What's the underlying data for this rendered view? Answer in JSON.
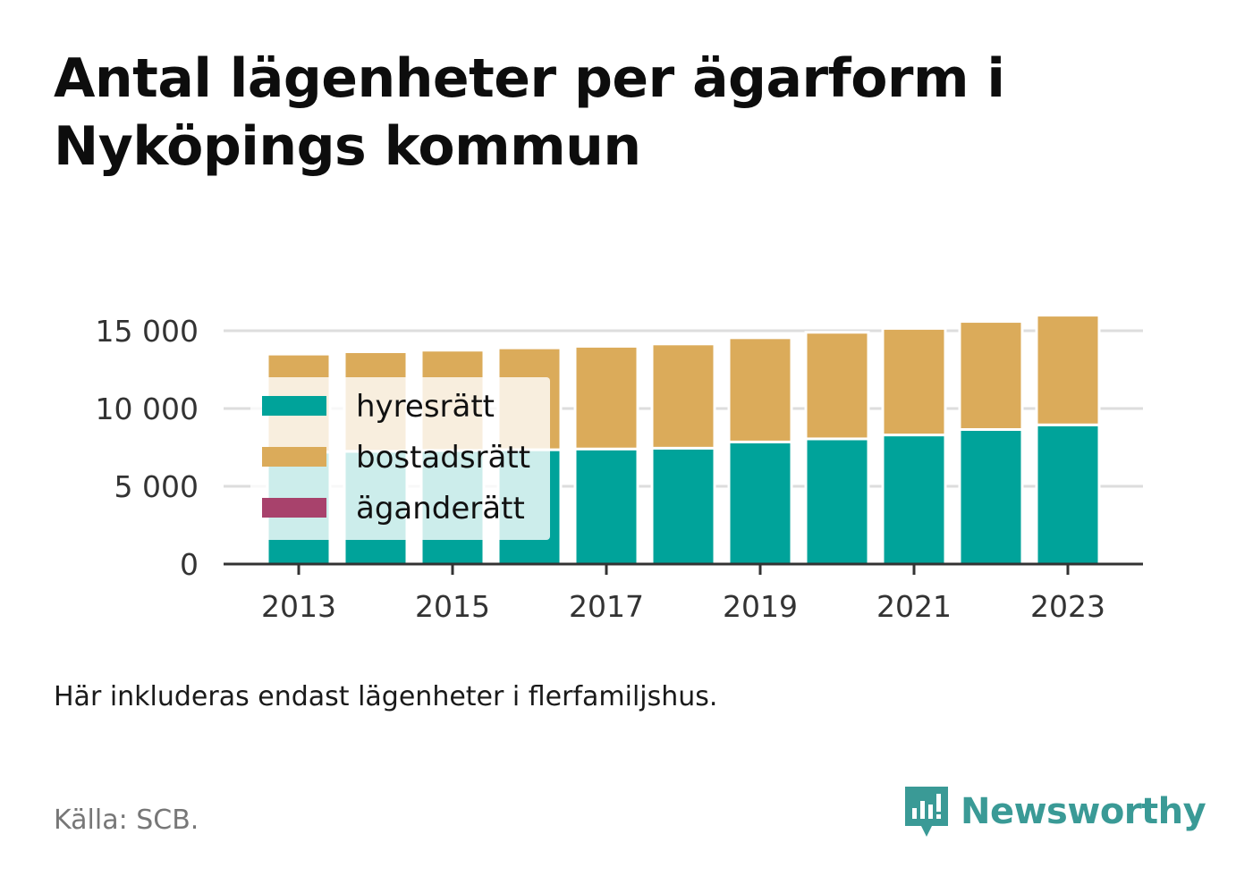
{
  "title": "Antal lägenheter per ägarform i Nyköpings kommun",
  "note": "Här inkluderas endast lägenheter i flerfamiljshus.",
  "source": "Källa: SCB.",
  "brand": "Newsworthy",
  "colors": {
    "hyresratt": "#00a39a",
    "bostadsratt": "#dbab5a",
    "aganderatt": "#a8426c",
    "brand": "#3a9a96",
    "grid": "#dddddd",
    "axis": "#333333"
  },
  "chart_data": {
    "type": "bar",
    "stacked": true,
    "categories": [
      "2013",
      "2014",
      "2015",
      "2016",
      "2017",
      "2018",
      "2019",
      "2020",
      "2021",
      "2022",
      "2023"
    ],
    "x_tick_labels": [
      "2013",
      "2015",
      "2017",
      "2019",
      "2021",
      "2023"
    ],
    "y_tick_labels": [
      "0",
      "5 000",
      "10 000",
      "15 000"
    ],
    "y_ticks": [
      0,
      5000,
      10000,
      15000
    ],
    "ylim": [
      0,
      15000
    ],
    "grid": true,
    "legend_position": "top-left",
    "series": [
      {
        "name": "hyresrätt",
        "color": "#00a39a",
        "values": [
          7200,
          7250,
          7300,
          7350,
          7400,
          7450,
          7850,
          8050,
          8300,
          8650,
          8950
        ]
      },
      {
        "name": "bostadsrätt",
        "color": "#dbab5a",
        "values": [
          6300,
          6400,
          6450,
          6550,
          6600,
          6700,
          6700,
          6850,
          6850,
          6950,
          7050
        ]
      },
      {
        "name": "äganderätt",
        "color": "#a8426c",
        "values": [
          0,
          0,
          0,
          0,
          0,
          0,
          0,
          0,
          0,
          0,
          0
        ]
      }
    ]
  }
}
